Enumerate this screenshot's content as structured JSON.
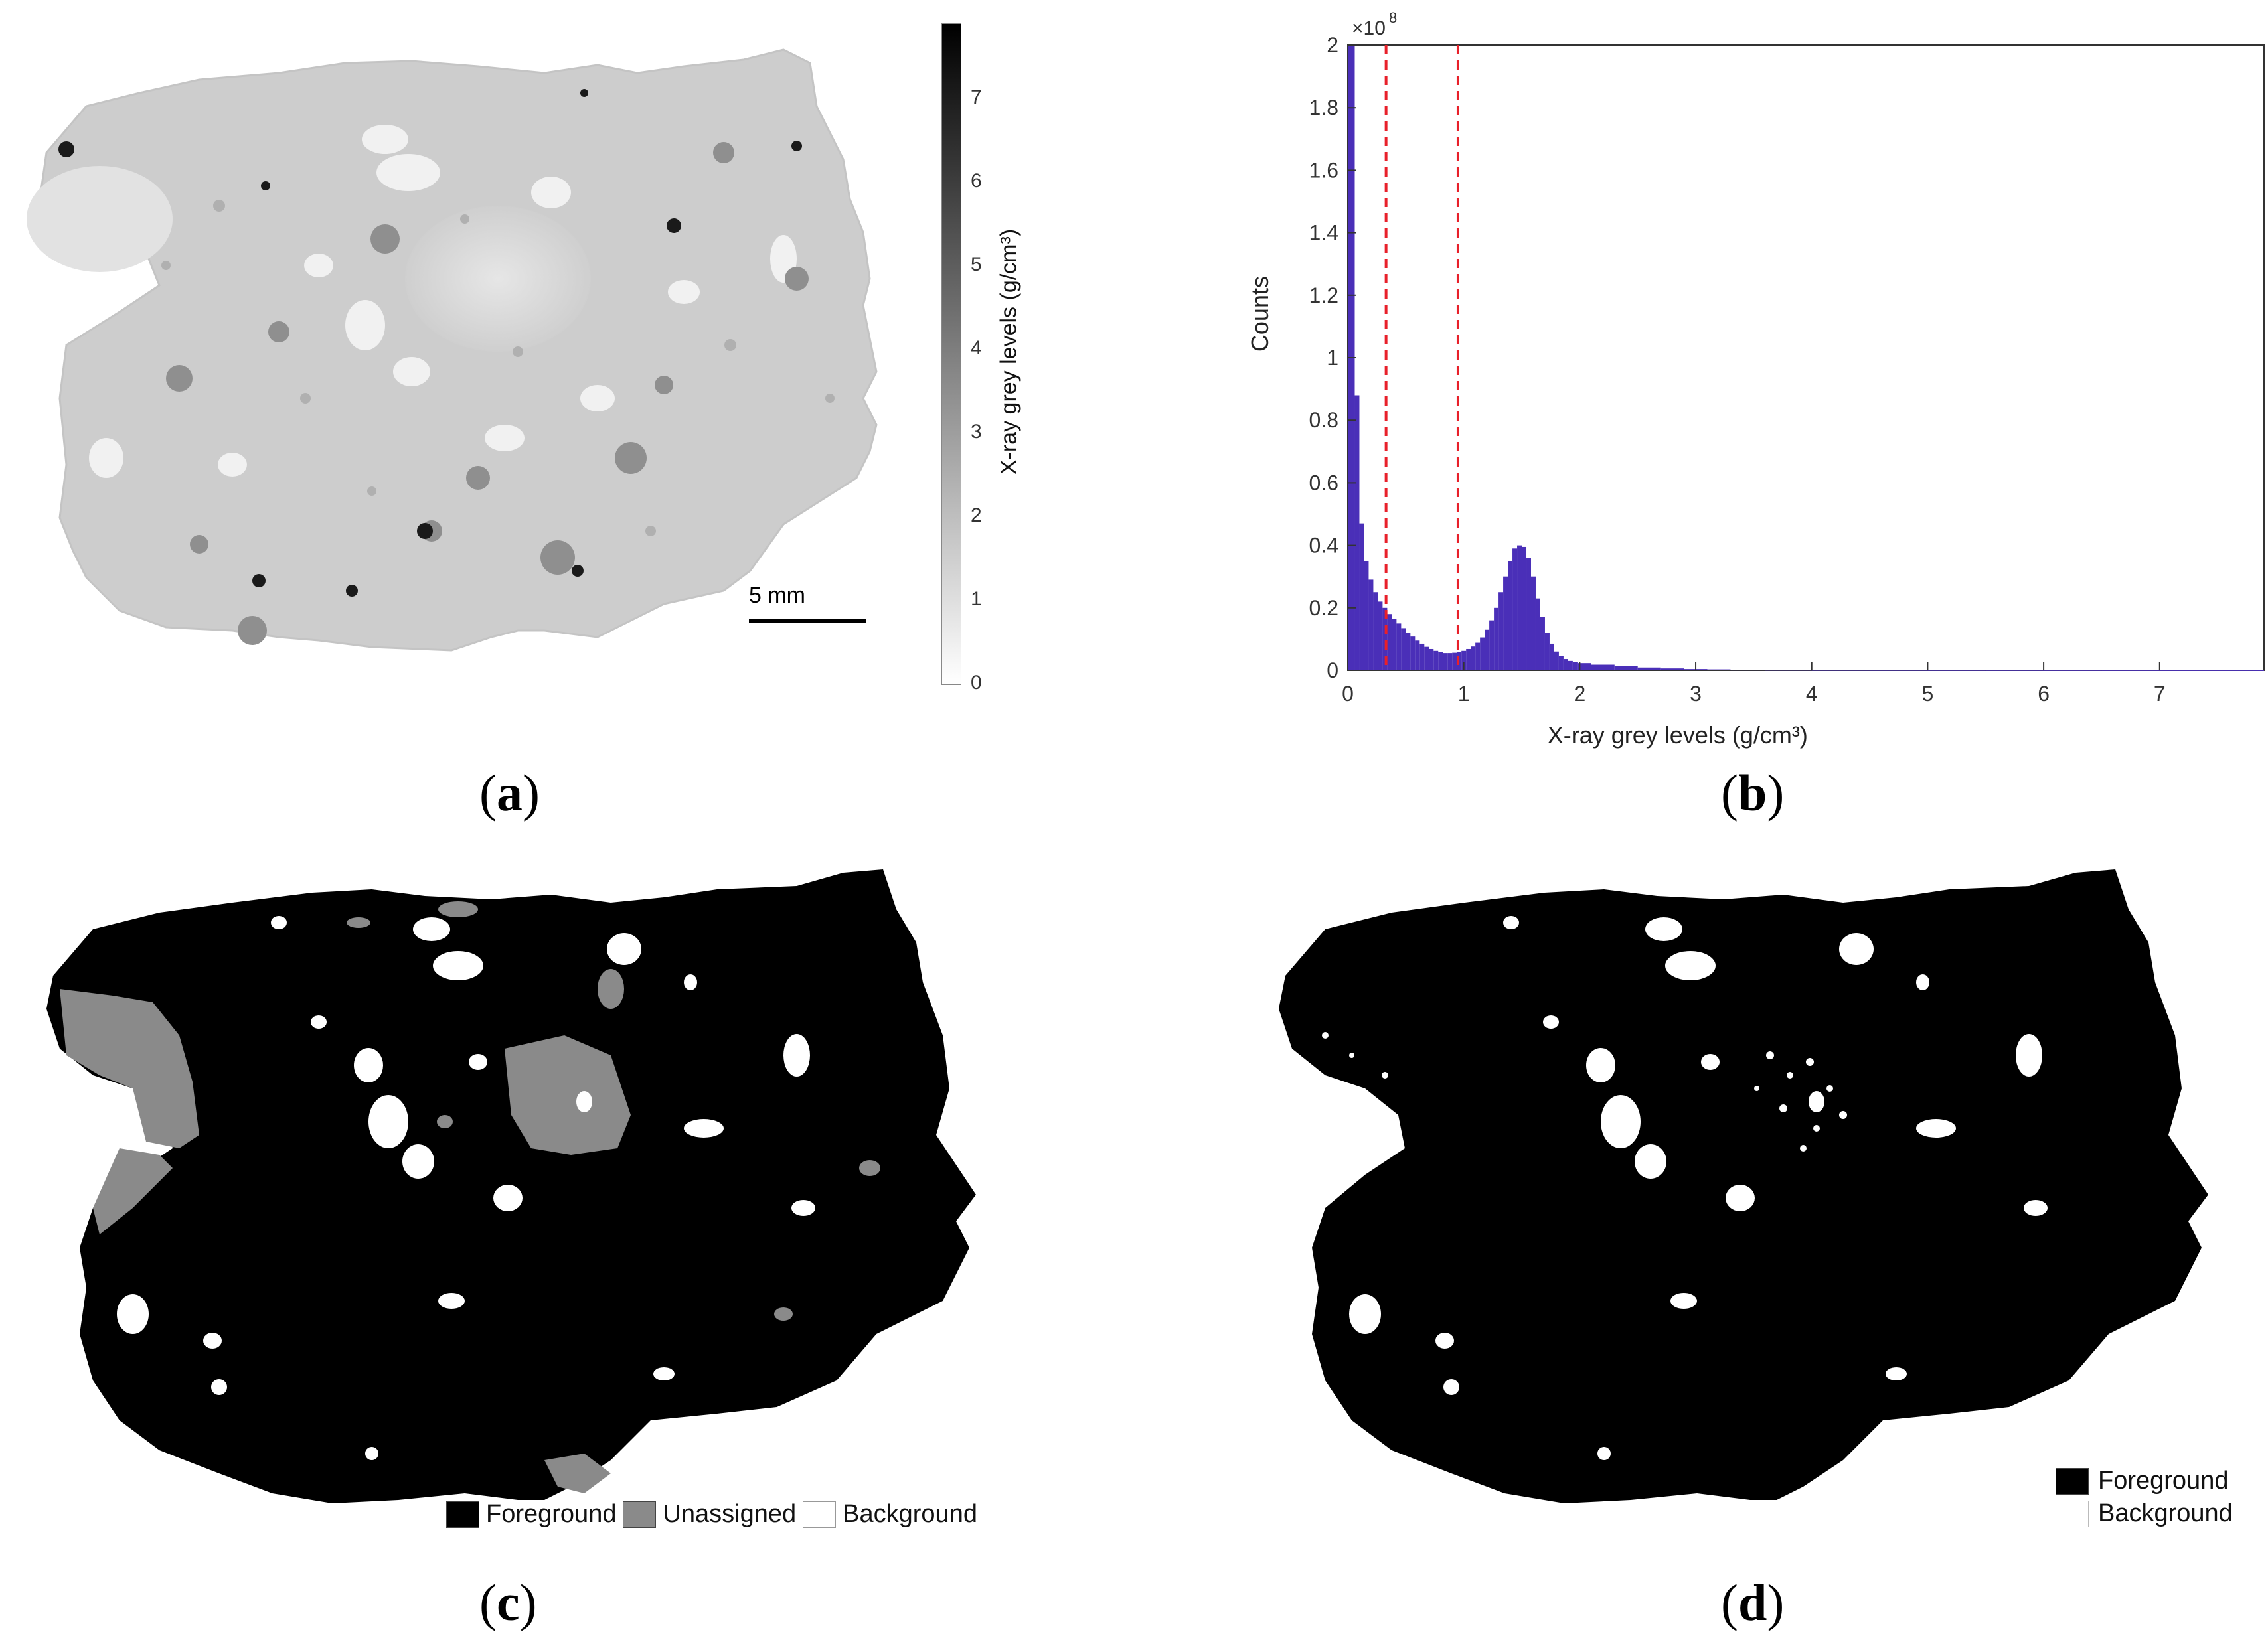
{
  "figure": {
    "panel_a": {
      "label": "a",
      "scalebar_text": "5 mm",
      "colorbar": {
        "title": "X-ray grey levels (g/cm³)",
        "ticks": [
          "0",
          "1",
          "2",
          "3",
          "4",
          "5",
          "6",
          "7"
        ],
        "range": [
          0,
          7.9
        ]
      }
    },
    "panel_b": {
      "label": "b"
    },
    "panel_c": {
      "label": "c",
      "legend": [
        "Foreground",
        "Unassigned",
        "Background"
      ]
    },
    "panel_d": {
      "label": "d",
      "legend": [
        "Foreground",
        "Background"
      ]
    }
  },
  "chart_data": {
    "type": "bar",
    "xlabel": "X-ray grey levels (g/cm³)",
    "ylabel": "Counts",
    "y_multiplier_label": "×10",
    "y_multiplier_exp": "8",
    "xlim": [
      0,
      7.9
    ],
    "ylim": [
      0,
      2.0
    ],
    "x_ticks": [
      "0",
      "1",
      "2",
      "3",
      "4",
      "5",
      "6",
      "7"
    ],
    "y_ticks": [
      "0",
      "0.2",
      "0.4",
      "0.6",
      "0.8",
      "1",
      "1.2",
      "1.4",
      "1.6",
      "1.8",
      "2"
    ],
    "bar_color": "#4a2fb8",
    "threshold_lines": [
      0.33,
      0.95
    ],
    "threshold_color": "#e8202a",
    "x": [
      0.02,
      0.06,
      0.1,
      0.14,
      0.18,
      0.22,
      0.26,
      0.3,
      0.34,
      0.38,
      0.42,
      0.46,
      0.5,
      0.54,
      0.58,
      0.62,
      0.66,
      0.7,
      0.74,
      0.78,
      0.82,
      0.86,
      0.9,
      0.94,
      0.98,
      1.02,
      1.06,
      1.1,
      1.14,
      1.18,
      1.22,
      1.26,
      1.3,
      1.34,
      1.38,
      1.42,
      1.46,
      1.5,
      1.54,
      1.58,
      1.62,
      1.66,
      1.7,
      1.74,
      1.78,
      1.82,
      1.86,
      1.9,
      1.94,
      1.98,
      2.1,
      2.3,
      2.5,
      2.7,
      2.9,
      3.1,
      3.3,
      3.6,
      4.0,
      4.5,
      5.0,
      5.5,
      6.0,
      6.5,
      7.0,
      7.5,
      7.8
    ],
    "values": [
      2.0,
      0.88,
      0.47,
      0.35,
      0.29,
      0.25,
      0.22,
      0.2,
      0.18,
      0.165,
      0.15,
      0.135,
      0.12,
      0.108,
      0.095,
      0.085,
      0.075,
      0.068,
      0.062,
      0.058,
      0.055,
      0.055,
      0.056,
      0.058,
      0.062,
      0.068,
      0.076,
      0.088,
      0.105,
      0.13,
      0.16,
      0.2,
      0.25,
      0.3,
      0.35,
      0.39,
      0.4,
      0.395,
      0.36,
      0.3,
      0.23,
      0.17,
      0.12,
      0.085,
      0.06,
      0.045,
      0.036,
      0.03,
      0.026,
      0.023,
      0.018,
      0.013,
      0.009,
      0.006,
      0.004,
      0.003,
      0.002,
      0.0015,
      0.001,
      0.0008,
      0.0006,
      0.0005,
      0.0004,
      0.0003,
      0.0002,
      0.0002,
      0.0001
    ]
  }
}
